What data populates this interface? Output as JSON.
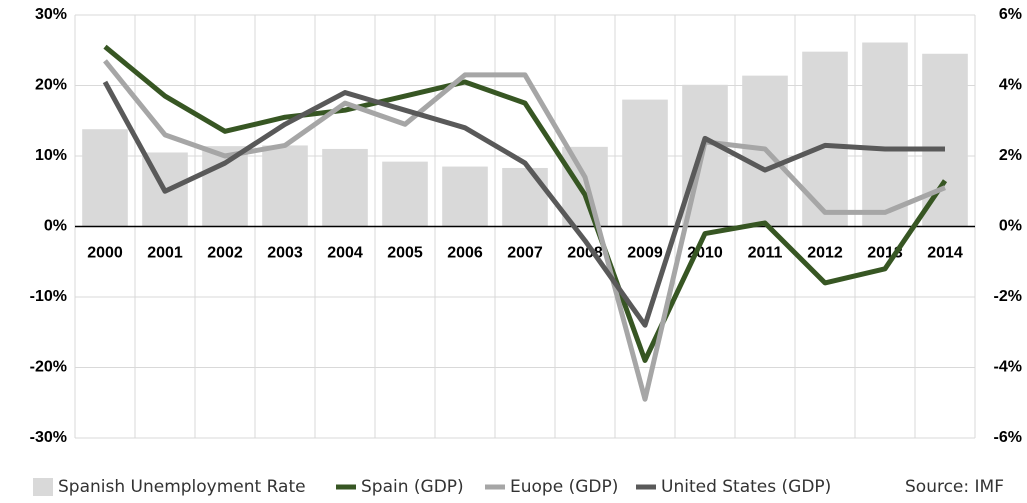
{
  "chart_data": {
    "type": "combo",
    "categories": [
      "2000",
      "2001",
      "2002",
      "2003",
      "2004",
      "2005",
      "2006",
      "2007",
      "2008",
      "2009",
      "2010",
      "2011",
      "2012",
      "2013",
      "2014"
    ],
    "series": [
      {
        "name": "Spanish Unemployment Rate",
        "type": "bar",
        "color": "#d9d9d9",
        "axis": "y",
        "values": [
          13.8,
          10.5,
          11.4,
          11.5,
          11.0,
          9.2,
          8.5,
          8.3,
          11.3,
          18.0,
          20.1,
          21.4,
          24.8,
          26.1,
          24.5
        ]
      },
      {
        "name": "Spain (GDP)",
        "type": "line",
        "color": "#375623",
        "axis": "y2",
        "values": [
          5.1,
          3.7,
          2.7,
          3.1,
          3.3,
          3.7,
          4.1,
          3.5,
          0.9,
          -3.8,
          -0.2,
          0.1,
          -1.6,
          -1.2,
          1.3
        ]
      },
      {
        "name": "Euope (GDP)",
        "type": "line",
        "color": "#a6a6a6",
        "axis": "y2",
        "values": [
          4.7,
          2.6,
          2.0,
          2.3,
          3.5,
          2.9,
          4.3,
          4.3,
          1.4,
          -4.9,
          2.4,
          2.2,
          0.4,
          0.4,
          1.1
        ]
      },
      {
        "name": "United States (GDP)",
        "type": "line",
        "color": "#595959",
        "axis": "y2",
        "values": [
          4.1,
          1.0,
          1.8,
          2.9,
          3.8,
          3.3,
          2.8,
          1.8,
          -0.4,
          -2.8,
          2.5,
          1.6,
          2.3,
          2.2,
          2.2
        ]
      }
    ],
    "ylim": [
      -30,
      30
    ],
    "yticks": [
      {
        "value": -30,
        "label": "-30%"
      },
      {
        "value": -20,
        "label": "-20%"
      },
      {
        "value": -10,
        "label": "-10%"
      },
      {
        "value": 0,
        "label": "0%"
      },
      {
        "value": 10,
        "label": "10%"
      },
      {
        "value": 20,
        "label": "20%"
      },
      {
        "value": 30,
        "label": "30%"
      }
    ],
    "y2lim": [
      -6,
      6
    ],
    "y2ticks": [
      {
        "value": -6,
        "label": "-6%"
      },
      {
        "value": -4,
        "label": "-4%"
      },
      {
        "value": -2,
        "label": "-2%"
      },
      {
        "value": 0,
        "label": "0%"
      },
      {
        "value": 2,
        "label": "2%"
      },
      {
        "value": 4,
        "label": "4%"
      },
      {
        "value": 6,
        "label": "6%"
      }
    ],
    "grid": true,
    "source": "Source: IMF"
  }
}
